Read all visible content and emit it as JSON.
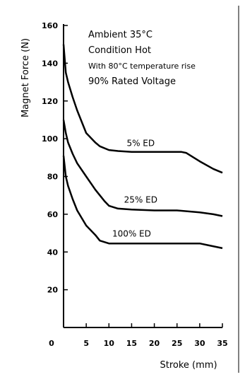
{
  "chart_data": {
    "type": "line",
    "title": "",
    "xlabel": "Stroke (mm)",
    "ylabel": "Magnet Force (N)",
    "xlim": [
      0,
      35
    ],
    "ylim": [
      0,
      160
    ],
    "x_ticks": [
      0,
      5,
      10,
      15,
      20,
      25,
      30,
      35
    ],
    "y_ticks": [
      20,
      40,
      60,
      80,
      100,
      120,
      140,
      160
    ],
    "grid": false,
    "annotations": [
      "Ambient 35°C",
      "Condition Hot",
      "With 80°C temperature rise",
      "90% Rated Voltage"
    ],
    "series": [
      {
        "name": "5% ED",
        "x": [
          0,
          0.5,
          1,
          2,
          3,
          5,
          7,
          8,
          10,
          12,
          15,
          20,
          25,
          26,
          27,
          28,
          30,
          33,
          35
        ],
        "y": [
          150,
          135,
          130,
          122,
          115,
          103,
          98,
          96,
          94,
          93.5,
          93,
          93,
          93,
          93,
          92.5,
          91,
          88,
          84,
          82
        ]
      },
      {
        "name": "25% ED",
        "x": [
          0,
          0.5,
          1,
          2,
          3,
          5,
          7,
          9,
          10,
          12,
          15,
          20,
          25,
          30,
          33,
          35
        ],
        "y": [
          110,
          103,
          98,
          92,
          87,
          80,
          73,
          67,
          64.5,
          63,
          62.5,
          62,
          62,
          61,
          60,
          59
        ]
      },
      {
        "name": "100% ED",
        "x": [
          0,
          0.5,
          1,
          2,
          3,
          5,
          7,
          8,
          10,
          15,
          20,
          25,
          30,
          32,
          35
        ],
        "y": [
          91,
          80,
          75,
          68,
          62,
          54,
          49,
          46,
          44.5,
          44.5,
          44.5,
          44.5,
          44.5,
          43.5,
          42
        ]
      }
    ],
    "series_label_positions": [
      {
        "x": 17,
        "y": 95
      },
      {
        "x": 17,
        "y": 65
      },
      {
        "x": 15,
        "y": 47
      }
    ]
  }
}
